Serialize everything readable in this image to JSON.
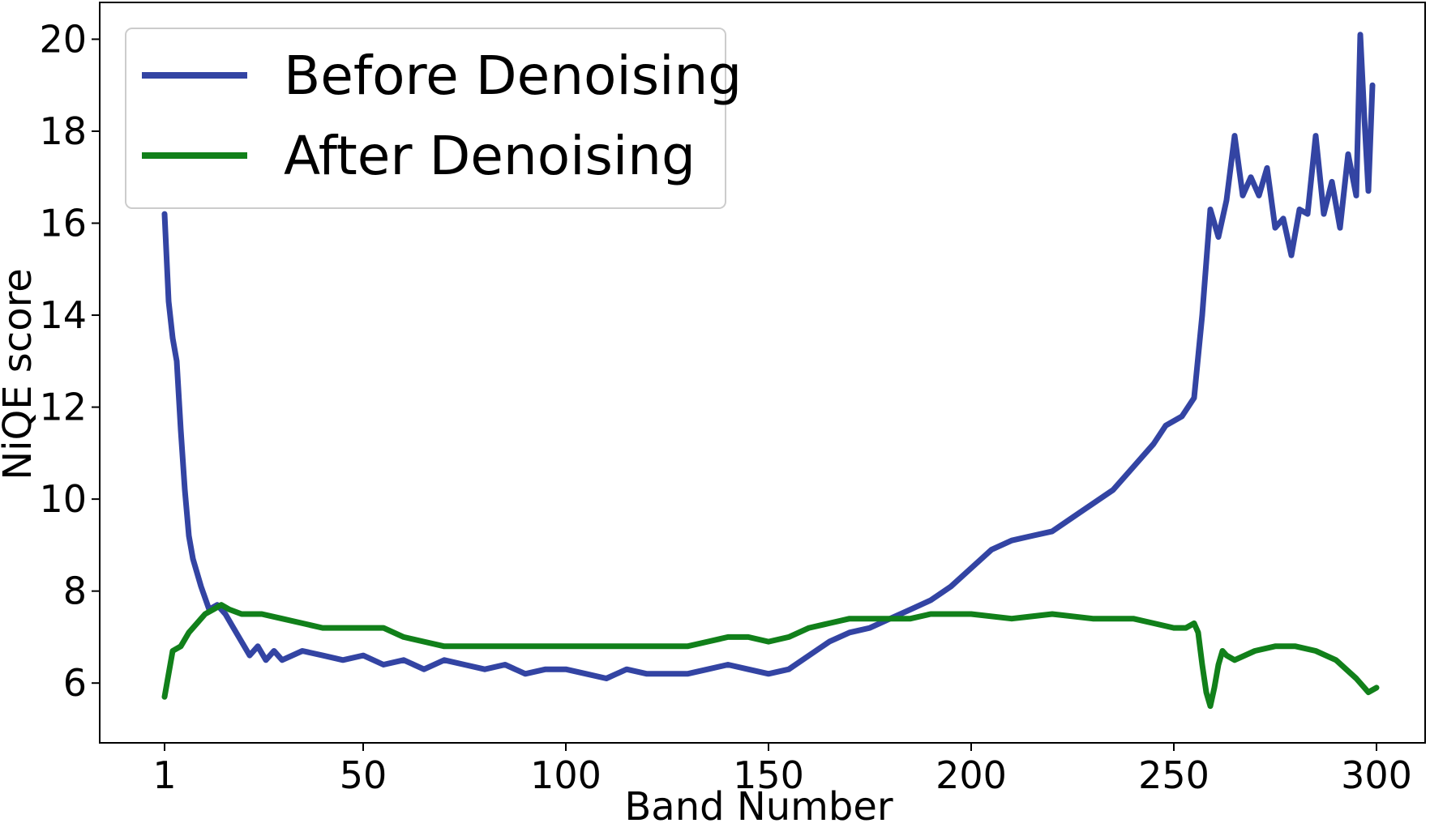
{
  "chart_data": {
    "type": "line",
    "xlabel": "Band Number",
    "ylabel": "NiQE score",
    "xlim": [
      -15,
      312
    ],
    "ylim": [
      4.7,
      20.8
    ],
    "xticks": [
      1,
      50,
      100,
      150,
      200,
      250,
      300
    ],
    "yticks": [
      6,
      8,
      10,
      12,
      14,
      16,
      18,
      20
    ],
    "grid": false,
    "legend_position": "top-left",
    "series": [
      {
        "name": "Before Denoising",
        "color": "#3344a3",
        "x": [
          1,
          2,
          3,
          4,
          5,
          6,
          7,
          8,
          10,
          12,
          14,
          16,
          18,
          20,
          22,
          24,
          26,
          28,
          30,
          35,
          40,
          45,
          50,
          55,
          60,
          65,
          70,
          75,
          80,
          85,
          90,
          95,
          100,
          105,
          110,
          115,
          120,
          125,
          130,
          135,
          140,
          145,
          150,
          155,
          160,
          165,
          170,
          175,
          180,
          185,
          190,
          195,
          200,
          205,
          210,
          215,
          220,
          225,
          230,
          235,
          240,
          245,
          248,
          252,
          255,
          257,
          259,
          261,
          263,
          265,
          267,
          269,
          271,
          273,
          275,
          277,
          279,
          281,
          283,
          285,
          287,
          289,
          291,
          293,
          295,
          296,
          297,
          298,
          299
        ],
        "values": [
          16.2,
          14.3,
          13.5,
          13.0,
          11.5,
          10.2,
          9.2,
          8.7,
          8.1,
          7.6,
          7.7,
          7.5,
          7.2,
          6.9,
          6.6,
          6.8,
          6.5,
          6.7,
          6.5,
          6.7,
          6.6,
          6.5,
          6.6,
          6.4,
          6.5,
          6.3,
          6.5,
          6.4,
          6.3,
          6.4,
          6.2,
          6.3,
          6.3,
          6.2,
          6.1,
          6.3,
          6.2,
          6.2,
          6.2,
          6.3,
          6.4,
          6.3,
          6.2,
          6.3,
          6.6,
          6.9,
          7.1,
          7.2,
          7.4,
          7.6,
          7.8,
          8.1,
          8.5,
          8.9,
          9.1,
          9.2,
          9.3,
          9.6,
          9.9,
          10.2,
          10.7,
          11.2,
          11.6,
          11.8,
          12.2,
          14.0,
          16.3,
          15.7,
          16.5,
          17.9,
          16.6,
          17.0,
          16.6,
          17.2,
          15.9,
          16.1,
          15.3,
          16.3,
          16.2,
          17.9,
          16.2,
          16.9,
          15.9,
          17.5,
          16.6,
          20.1,
          18.3,
          16.7,
          19.0
        ]
      },
      {
        "name": "After Denoising",
        "color": "#11801a",
        "x": [
          1,
          3,
          5,
          7,
          9,
          11,
          13,
          15,
          17,
          20,
          25,
          30,
          35,
          40,
          45,
          50,
          55,
          60,
          65,
          70,
          75,
          80,
          85,
          90,
          95,
          100,
          105,
          110,
          115,
          120,
          125,
          130,
          135,
          140,
          145,
          150,
          155,
          160,
          165,
          170,
          175,
          180,
          185,
          190,
          195,
          200,
          210,
          220,
          230,
          240,
          245,
          250,
          253,
          255,
          256,
          257,
          258,
          259,
          260,
          261,
          262,
          263,
          265,
          270,
          275,
          280,
          285,
          290,
          295,
          298,
          300
        ],
        "values": [
          5.7,
          6.7,
          6.8,
          7.1,
          7.3,
          7.5,
          7.6,
          7.7,
          7.6,
          7.5,
          7.5,
          7.4,
          7.3,
          7.2,
          7.2,
          7.2,
          7.2,
          7.0,
          6.9,
          6.8,
          6.8,
          6.8,
          6.8,
          6.8,
          6.8,
          6.8,
          6.8,
          6.8,
          6.8,
          6.8,
          6.8,
          6.8,
          6.9,
          7.0,
          7.0,
          6.9,
          7.0,
          7.2,
          7.3,
          7.4,
          7.4,
          7.4,
          7.4,
          7.5,
          7.5,
          7.5,
          7.4,
          7.5,
          7.4,
          7.4,
          7.3,
          7.2,
          7.2,
          7.3,
          7.1,
          6.4,
          5.8,
          5.5,
          5.9,
          6.4,
          6.7,
          6.6,
          6.5,
          6.7,
          6.8,
          6.8,
          6.7,
          6.5,
          6.1,
          5.8,
          5.9
        ]
      }
    ]
  }
}
